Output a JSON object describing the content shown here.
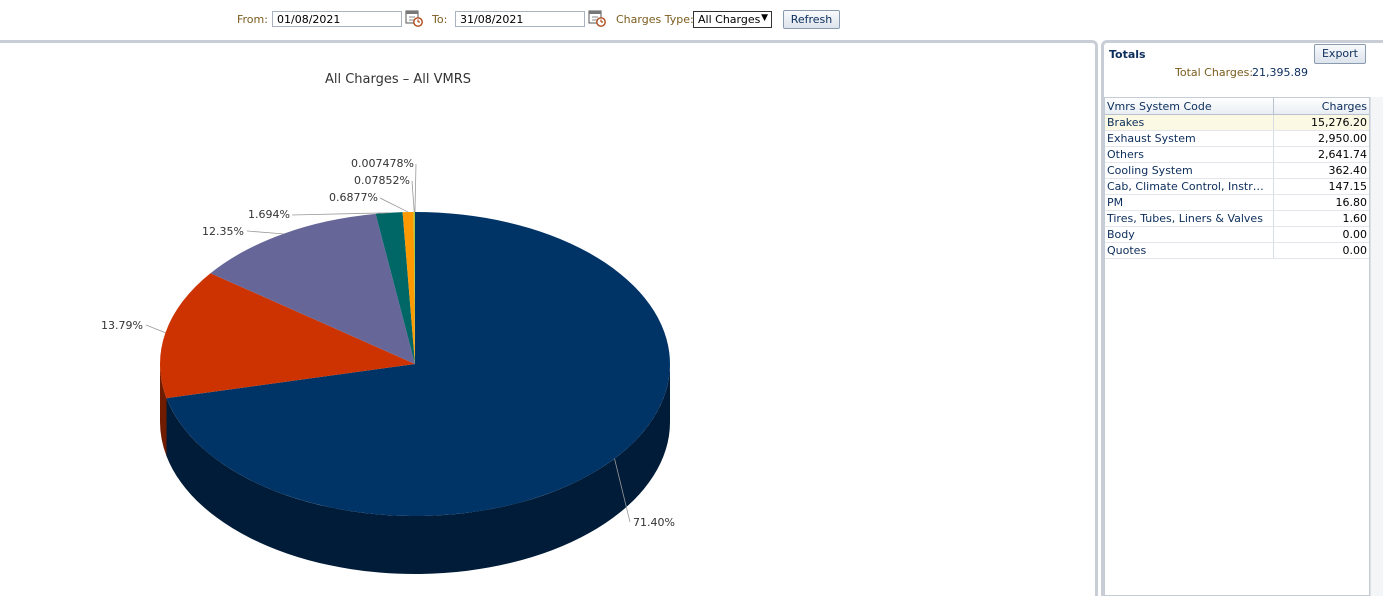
{
  "filters": {
    "from_label": "From:",
    "from_value": "01/08/2021",
    "to_label": "To:",
    "to_value": "31/08/2021",
    "charges_type_label": "Charges Type:",
    "charges_type_value": "All Charges",
    "refresh_label": "Refresh",
    "calendar_icon": "calendar-icon"
  },
  "totals": {
    "title": "Totals",
    "export_label": "Export",
    "total_charges_label": "Total Charges:",
    "total_charges_value": "21,395.89",
    "columns": {
      "code": "Vmrs System Code",
      "charges": "Charges"
    },
    "rows": [
      {
        "code": "Brakes",
        "charges": "15,276.20"
      },
      {
        "code": "Exhaust System",
        "charges": "2,950.00"
      },
      {
        "code": "Others",
        "charges": "2,641.74"
      },
      {
        "code": "Cooling System",
        "charges": "362.40"
      },
      {
        "code": "Cab, Climate Control, Instrume…",
        "charges": "147.15"
      },
      {
        "code": "PM",
        "charges": "16.80"
      },
      {
        "code": "Tires, Tubes, Liners & Valves",
        "charges": "1.60"
      },
      {
        "code": "Body",
        "charges": "0.00"
      },
      {
        "code": "Quotes",
        "charges": "0.00"
      }
    ]
  },
  "colors": {
    "slice_1": "#003366",
    "slice_2": "#cc3300",
    "slice_3": "#666699",
    "slice_4": "#006666",
    "slice_5": "#ff9900",
    "slice_6": "#99cc33",
    "slice_7": "#cc6633"
  },
  "chart_data": {
    "type": "pie",
    "title": "All Charges – All VMRS",
    "three_d": true,
    "categories": [
      "Brakes",
      "Exhaust System",
      "Others",
      "Cooling System",
      "Cab, Climate Control, Instrume…",
      "PM",
      "Tires, Tubes, Liners & Valves"
    ],
    "values": [
      15276.2,
      2950.0,
      2641.74,
      362.4,
      147.15,
      16.8,
      1.6
    ],
    "percent_labels": [
      "71.40%",
      "13.79%",
      "12.35%",
      "1.694%",
      "0.6877%",
      "0.07852%",
      "0.007478%"
    ]
  }
}
